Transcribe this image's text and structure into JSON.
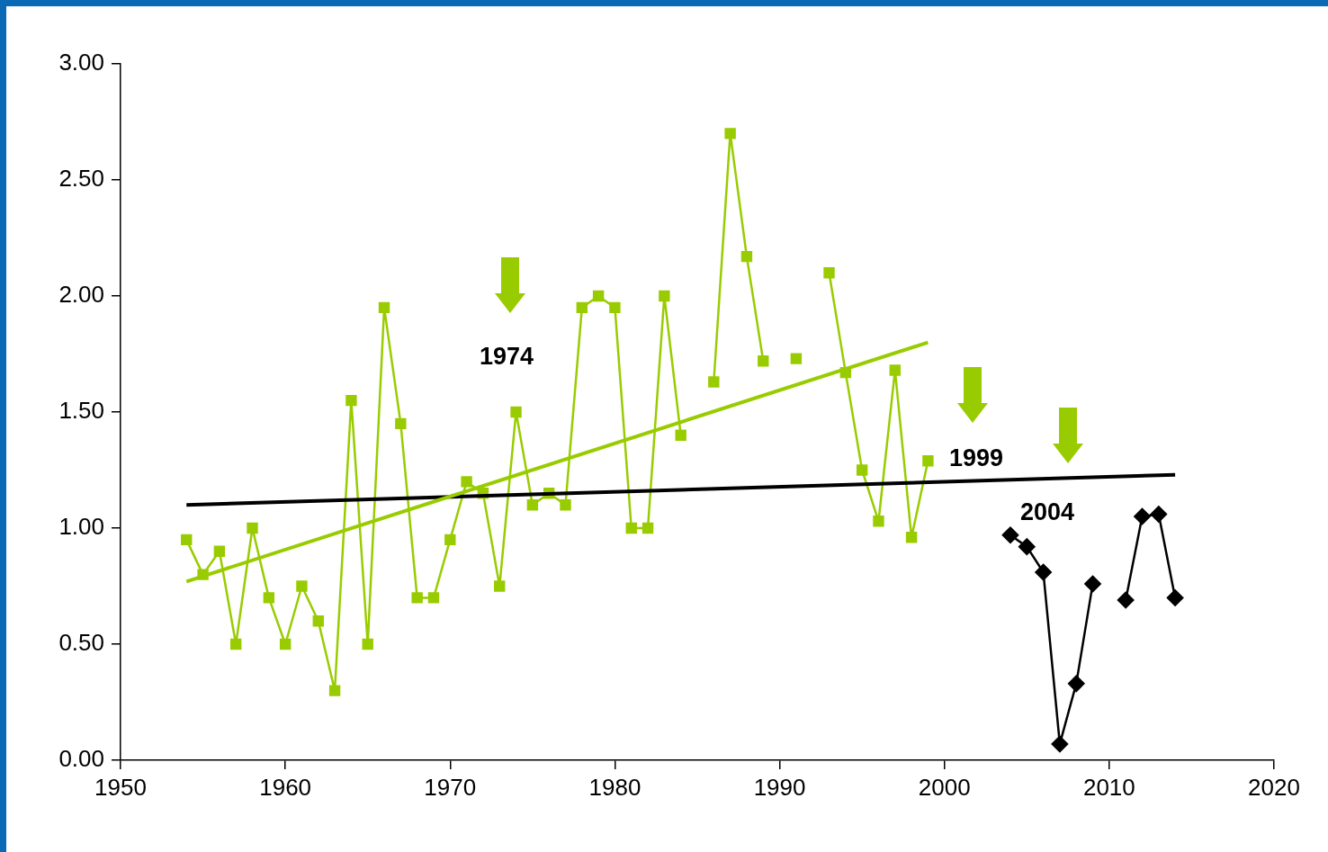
{
  "chart_data": {
    "type": "line",
    "xlim": [
      1950,
      2020
    ],
    "xticks": [
      1950,
      1960,
      1970,
      1980,
      1990,
      2000,
      2010,
      2020
    ],
    "ylim": [
      0,
      3
    ],
    "yticks": [
      {
        "value": 0,
        "label": "0.00"
      },
      {
        "value": 0.5,
        "label": "0.50"
      },
      {
        "value": 1,
        "label": "1.00"
      },
      {
        "value": 1.5,
        "label": "1.50"
      },
      {
        "value": 2,
        "label": "2.00"
      },
      {
        "value": 2.5,
        "label": "2.50"
      },
      {
        "value": 3,
        "label": "3.00"
      }
    ],
    "grid": false,
    "legend": false,
    "series": [
      {
        "type": "line",
        "color": "#99cc00",
        "marker": "square",
        "x": [
          1954,
          1955,
          1956,
          1957,
          1958,
          1959,
          1960,
          1961,
          1962,
          1963,
          1964,
          1965,
          1966,
          1967,
          1968,
          1969,
          1970,
          1971,
          1972,
          1973,
          1974,
          1975,
          1976,
          1977,
          1978,
          1979,
          1980,
          1981,
          1982,
          1983,
          1984,
          1985,
          1986,
          1987,
          1988,
          1989,
          1990,
          1991,
          1992,
          1993,
          1994,
          1995,
          1996,
          1997,
          1998,
          1999
        ],
        "values": [
          0.95,
          0.8,
          0.9,
          0.5,
          1.0,
          0.7,
          0.5,
          0.75,
          0.6,
          0.3,
          1.55,
          0.5,
          1.95,
          1.45,
          0.7,
          0.7,
          0.95,
          1.2,
          1.15,
          0.75,
          1.5,
          1.1,
          1.15,
          1.1,
          1.95,
          2.0,
          1.95,
          1.0,
          1.0,
          2.0,
          1.4,
          null,
          1.63,
          2.7,
          2.17,
          1.72,
          null,
          1.73,
          null,
          2.1,
          1.67,
          1.25,
          1.03,
          1.68,
          0.96,
          1.29
        ]
      },
      {
        "type": "line",
        "color": "#000000",
        "marker": "diamond",
        "x": [
          2004,
          2005,
          2006,
          2007,
          2008,
          2009,
          2010,
          2011,
          2012,
          2013,
          2014
        ],
        "values": [
          0.97,
          0.92,
          0.81,
          0.07,
          0.33,
          0.76,
          null,
          0.69,
          1.05,
          1.06,
          0.7
        ]
      },
      {
        "type": "line",
        "color": "#99cc00",
        "marker": "none",
        "x": [
          1954,
          1999
        ],
        "values": [
          0.77,
          1.8
        ]
      },
      {
        "type": "line",
        "color": "#000000",
        "marker": "none",
        "x": [
          1954,
          2014
        ],
        "values": [
          1.1,
          1.23
        ]
      }
    ],
    "annotations": [
      "1974",
      "1999",
      "2004"
    ]
  }
}
